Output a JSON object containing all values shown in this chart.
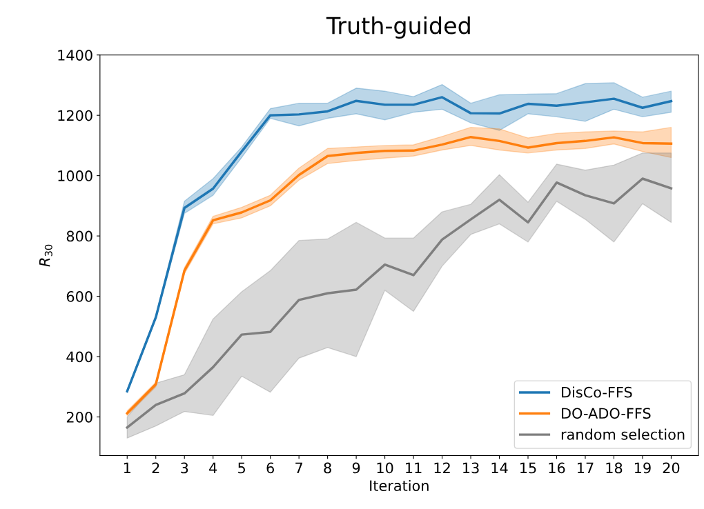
{
  "chart_data": {
    "type": "line",
    "title": "Truth-guided",
    "xlabel": "Iteration",
    "ylabel": "R$_{30}$",
    "x": [
      1,
      2,
      3,
      4,
      5,
      6,
      7,
      8,
      9,
      10,
      11,
      12,
      13,
      14,
      15,
      16,
      17,
      18,
      19,
      20
    ],
    "xlim": [
      0.05,
      20.95
    ],
    "xticks": [
      1,
      2,
      3,
      4,
      5,
      6,
      7,
      8,
      9,
      10,
      11,
      12,
      13,
      14,
      15,
      16,
      17,
      18,
      19,
      20
    ],
    "ylim": [
      72,
      1400
    ],
    "yticks": [
      200,
      400,
      600,
      800,
      1000,
      1200,
      1400
    ],
    "grid": false,
    "legend": "bottom right",
    "marker": "none",
    "line_style": "solid",
    "series": [
      {
        "name": "DisCo-FFS",
        "color": "#1f77b4",
        "values": [
          285,
          530,
          893,
          957,
          1080,
          1200,
          1203,
          1213,
          1248,
          1235,
          1235,
          1260,
          1207,
          1206,
          1238,
          1232,
          1243,
          1255,
          1225,
          1247
        ],
        "lower": [
          280,
          525,
          875,
          935,
          1060,
          1190,
          1165,
          1190,
          1205,
          1185,
          1210,
          1220,
          1175,
          1150,
          1205,
          1195,
          1180,
          1220,
          1195,
          1210
        ],
        "upper": [
          290,
          535,
          915,
          990,
          1095,
          1222,
          1240,
          1240,
          1290,
          1280,
          1262,
          1302,
          1240,
          1268,
          1270,
          1272,
          1305,
          1308,
          1260,
          1280
        ]
      },
      {
        "name": "DO-ADO-FFS",
        "color": "#ff7f0e",
        "values": [
          212,
          308,
          685,
          852,
          878,
          918,
          1002,
          1065,
          1075,
          1082,
          1083,
          1103,
          1128,
          1115,
          1093,
          1108,
          1115,
          1127,
          1108,
          1106
        ],
        "lower": [
          205,
          300,
          675,
          840,
          860,
          900,
          985,
          1040,
          1050,
          1058,
          1065,
          1085,
          1100,
          1085,
          1075,
          1085,
          1090,
          1105,
          1080,
          1060
        ],
        "upper": [
          220,
          315,
          695,
          865,
          895,
          935,
          1025,
          1090,
          1095,
          1100,
          1102,
          1130,
          1160,
          1155,
          1125,
          1140,
          1145,
          1148,
          1145,
          1160
        ]
      },
      {
        "name": "random selection",
        "color": "#7f7f7f",
        "values": [
          165,
          240,
          278,
          365,
          473,
          482,
          588,
          610,
          622,
          705,
          670,
          788,
          855,
          920,
          845,
          977,
          935,
          908,
          990,
          958
        ],
        "lower": [
          130,
          170,
          218,
          205,
          335,
          282,
          395,
          430,
          400,
          620,
          550,
          700,
          805,
          840,
          780,
          915,
          855,
          780,
          907,
          845
        ],
        "upper": [
          200,
          312,
          340,
          525,
          615,
          685,
          785,
          790,
          845,
          793,
          793,
          880,
          905,
          1003,
          912,
          1038,
          1018,
          1035,
          1075,
          1075
        ]
      }
    ]
  }
}
